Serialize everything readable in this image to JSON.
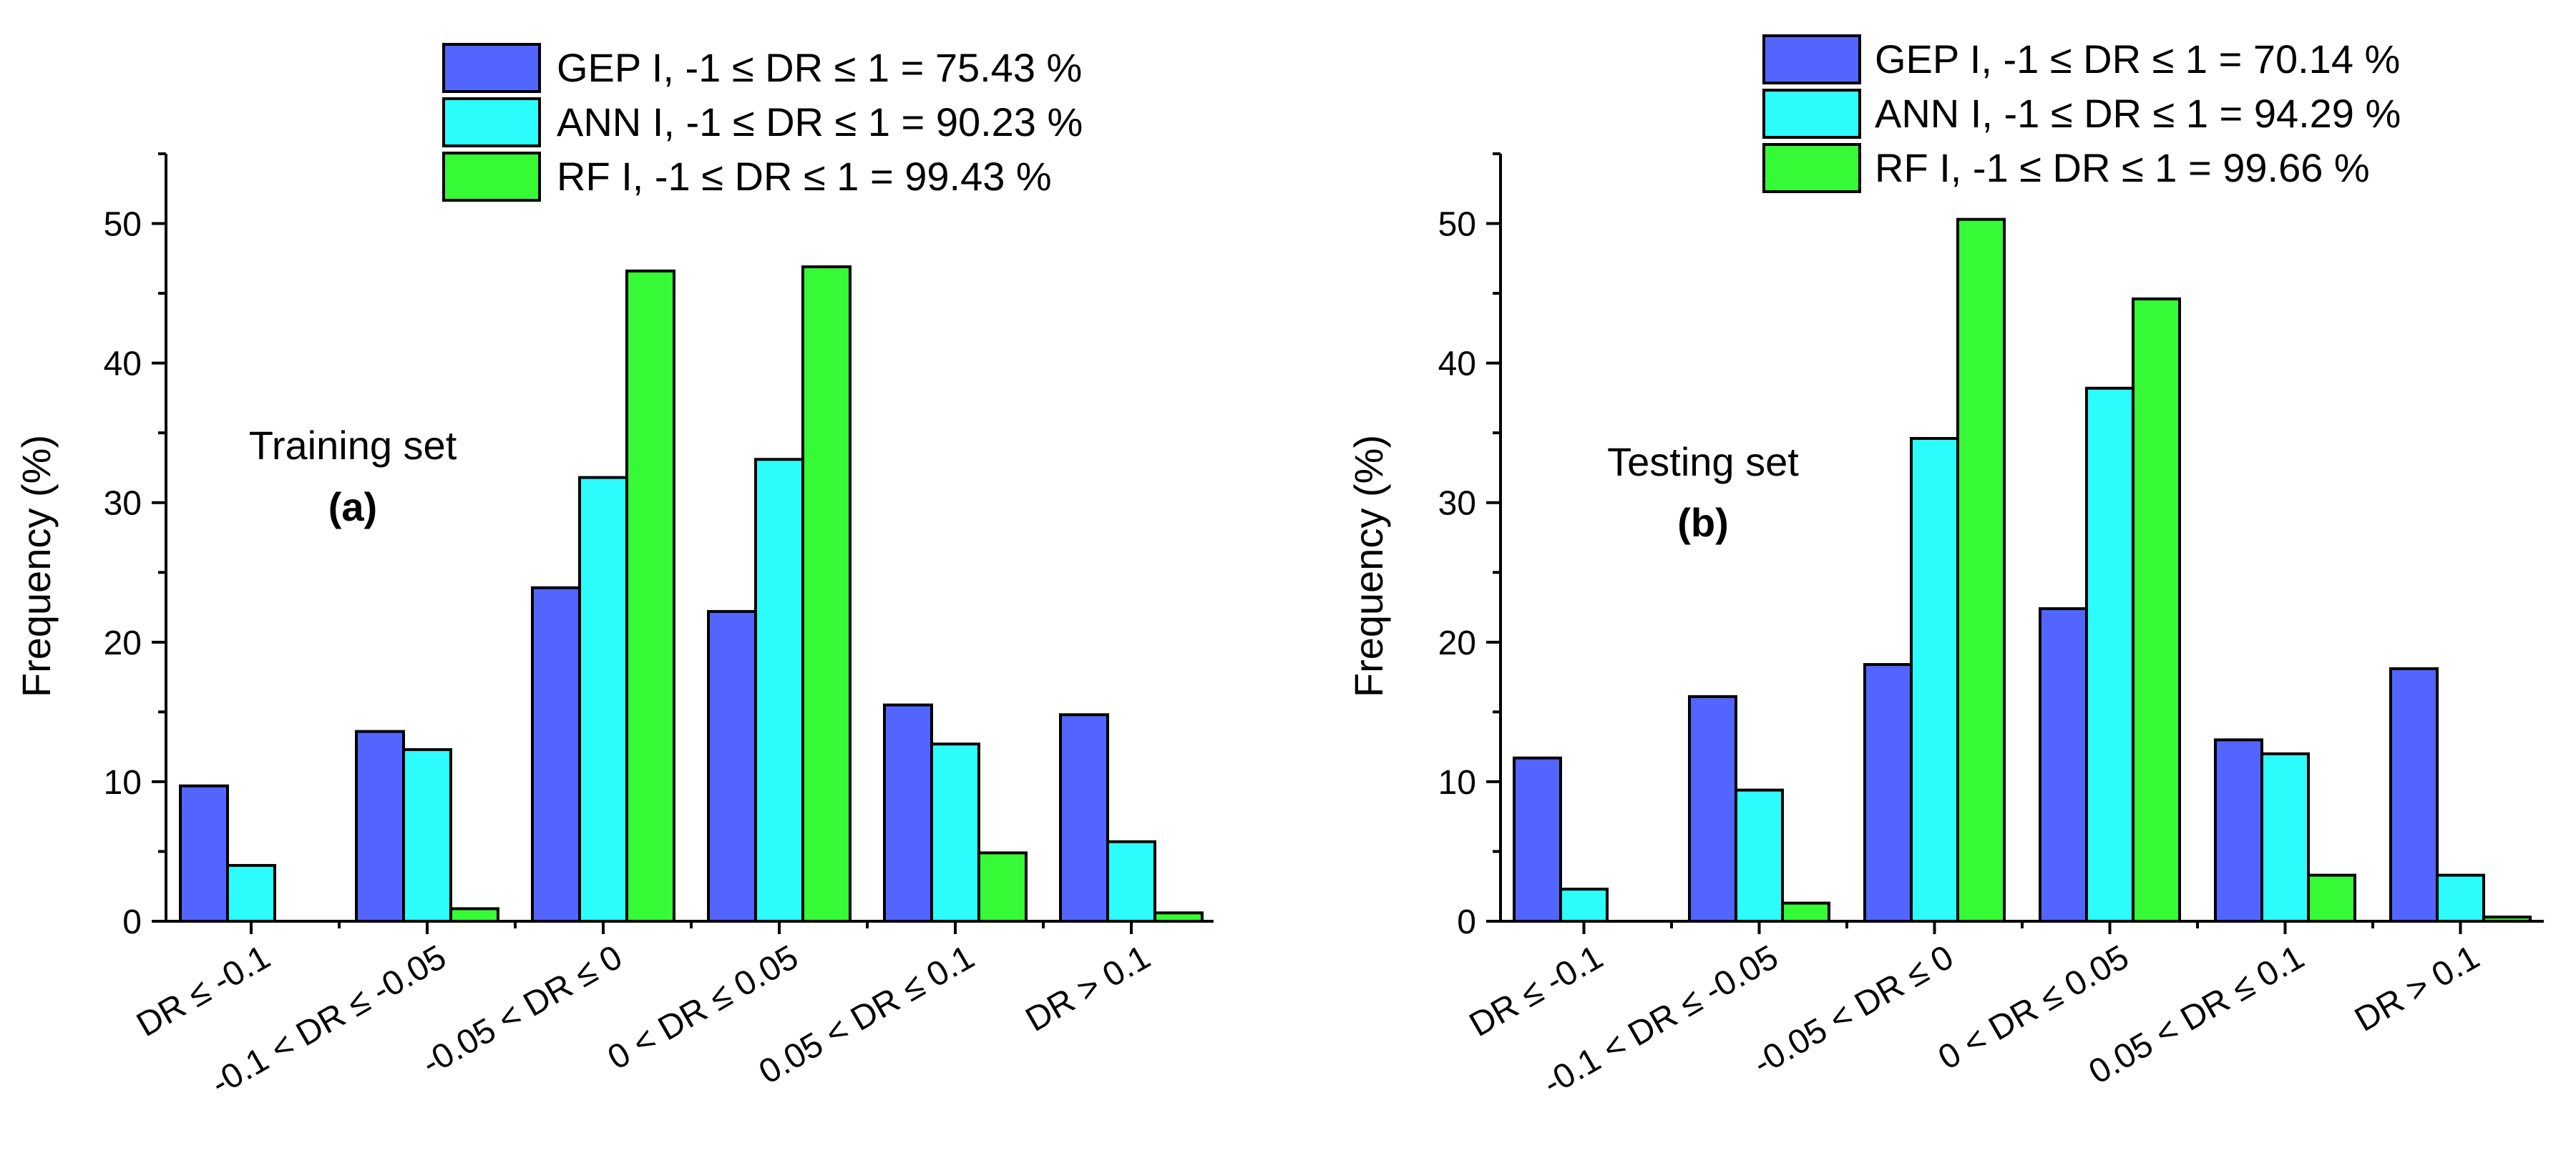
{
  "chart_data": [
    {
      "type": "bar",
      "panel": "a",
      "annotation": "Training set",
      "panel_label": "(a)",
      "ylabel": "Frequency (%)",
      "xlabel": "",
      "ylim": [
        0,
        55
      ],
      "yticks": [
        0,
        10,
        20,
        30,
        40,
        50
      ],
      "categories": [
        "DR ≤ -0.1",
        "-0.1 < DR ≤ -0.05",
        "-0.05 < DR ≤ 0",
        "0 < DR ≤ 0.05",
        "0.05 < DR ≤ 0.1",
        "DR > 0.1"
      ],
      "series": [
        {
          "name": "GEP I, -1 ≤ DR ≤ 1 = 75.43 %",
          "color": "#5266ff",
          "values": [
            9.7,
            13.6,
            23.9,
            22.2,
            15.5,
            14.8
          ]
        },
        {
          "name": "ANN I, -1 ≤ DR ≤ 1 = 90.23 %",
          "color": "#2dfcfc",
          "values": [
            4.0,
            12.3,
            31.8,
            33.1,
            12.7,
            5.7
          ]
        },
        {
          "name": "RF I, -1 ≤ DR ≤ 1 = 99.43 %",
          "color": "#37fa37",
          "values": [
            0.0,
            0.9,
            46.6,
            46.9,
            4.9,
            0.6
          ]
        }
      ],
      "legend_position": "top-right"
    },
    {
      "type": "bar",
      "panel": "b",
      "annotation": "Testing set",
      "panel_label": "(b)",
      "ylabel": "Frequency (%)",
      "xlabel": "",
      "ylim": [
        0,
        55
      ],
      "yticks": [
        0,
        10,
        20,
        30,
        40,
        50
      ],
      "categories": [
        "DR ≤ -0.1",
        "-0.1 < DR ≤ -0.05",
        "-0.05 < DR ≤ 0",
        "0 < DR ≤ 0.05",
        "0.05 < DR ≤ 0.1",
        "DR > 0.1"
      ],
      "series": [
        {
          "name": "GEP I, -1 ≤ DR ≤ 1 = 70.14 %",
          "color": "#5266ff",
          "values": [
            11.7,
            16.1,
            18.4,
            22.4,
            13.0,
            18.1
          ]
        },
        {
          "name": "ANN I, -1 ≤ DR ≤ 1 = 94.29 %",
          "color": "#2dfcfc",
          "values": [
            2.3,
            9.4,
            34.6,
            38.2,
            12.0,
            3.3
          ]
        },
        {
          "name": "RF I, -1 ≤ DR ≤ 1 = 99.66 %",
          "color": "#37fa37",
          "values": [
            0.0,
            1.3,
            50.3,
            44.6,
            3.3,
            0.3
          ]
        }
      ],
      "legend_position": "top-right"
    }
  ]
}
